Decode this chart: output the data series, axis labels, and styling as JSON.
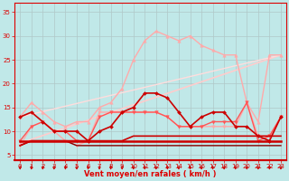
{
  "xlabel": "Vent moyen/en rafales ( km/h )",
  "bg_color": "#c0e8e8",
  "grid_color": "#b0c8c8",
  "text_color": "#dd0000",
  "xlim": [
    -0.5,
    23.5
  ],
  "ylim": [
    4,
    37
  ],
  "yticks": [
    5,
    10,
    15,
    20,
    25,
    30,
    35
  ],
  "xticks": [
    0,
    1,
    2,
    3,
    4,
    5,
    6,
    7,
    8,
    9,
    10,
    11,
    12,
    13,
    14,
    15,
    16,
    17,
    18,
    19,
    20,
    21,
    22,
    23
  ],
  "lines": [
    {
      "x": [
        0,
        1,
        2,
        3,
        4,
        5,
        6,
        7,
        8,
        9,
        10,
        11,
        12,
        13,
        14,
        15,
        16,
        17,
        18,
        19,
        20,
        21,
        22,
        23
      ],
      "y": [
        13,
        16,
        14,
        12,
        11,
        12,
        12,
        15,
        16,
        19,
        25,
        29,
        31,
        30,
        29,
        30,
        28,
        27,
        26,
        26,
        16,
        12,
        26,
        26
      ],
      "color": "#ffaaaa",
      "lw": 1.0,
      "marker": "^",
      "ms": 2.5,
      "zorder": 3
    },
    {
      "x": [
        0,
        1,
        2,
        3,
        4,
        5,
        6,
        7,
        8,
        9,
        10,
        11,
        12,
        13,
        14,
        15,
        16,
        17,
        18,
        19,
        20,
        21,
        22,
        23
      ],
      "y": [
        7,
        11,
        12,
        10,
        8,
        7,
        8,
        14,
        14,
        14,
        14,
        14,
        14,
        13,
        11,
        11,
        11,
        11,
        11,
        11,
        16,
        9,
        9,
        13
      ],
      "color": "#ffaaaa",
      "lw": 1.0,
      "marker": "v",
      "ms": 2.5,
      "zorder": 3
    },
    {
      "x": [
        0,
        1,
        2,
        3,
        4,
        5,
        6,
        7,
        8,
        9,
        10,
        11,
        12,
        13,
        14,
        15,
        16,
        17,
        18,
        19,
        20,
        21,
        22,
        23
      ],
      "y": [
        8,
        11,
        12,
        10,
        10,
        8,
        8,
        13,
        14,
        14,
        14,
        14,
        14,
        13,
        11,
        11,
        11,
        12,
        12,
        12,
        16,
        8,
        9,
        13
      ],
      "color": "#ff5555",
      "lw": 1.0,
      "marker": "v",
      "ms": 2.5,
      "zorder": 4
    },
    {
      "x": [
        0,
        1,
        2,
        3,
        4,
        5,
        6,
        7,
        8,
        9,
        10,
        11,
        12,
        13,
        14,
        15,
        16,
        17,
        18,
        19,
        20,
        21,
        22,
        23
      ],
      "y": [
        8,
        8,
        8,
        8,
        8,
        8,
        8,
        8,
        8,
        8,
        8,
        8,
        8,
        8,
        8,
        8,
        8,
        8,
        8,
        8,
        8,
        8,
        8,
        8
      ],
      "color": "#cc0000",
      "lw": 1.8,
      "marker": null,
      "ms": 0,
      "zorder": 5
    },
    {
      "x": [
        0,
        1,
        2,
        3,
        4,
        5,
        6,
        7,
        8,
        9,
        10,
        11,
        12,
        13,
        14,
        15,
        16,
        17,
        18,
        19,
        20,
        21,
        22,
        23
      ],
      "y": [
        7,
        8,
        8,
        8,
        8,
        8,
        8,
        8,
        8,
        8,
        9,
        9,
        9,
        9,
        9,
        9,
        9,
        9,
        9,
        9,
        9,
        9,
        9,
        9
      ],
      "color": "#cc0000",
      "lw": 1.2,
      "marker": null,
      "ms": 0,
      "zorder": 4
    },
    {
      "x": [
        0,
        1,
        2,
        3,
        4,
        5,
        6,
        7,
        8,
        9,
        10,
        11,
        12,
        13,
        14,
        15,
        16,
        17,
        18,
        19,
        20,
        21,
        22,
        23
      ],
      "y": [
        7,
        8,
        8,
        8,
        8,
        7,
        7,
        7,
        7,
        7,
        7,
        7,
        7,
        7,
        7,
        7,
        7,
        7,
        7,
        7,
        7,
        7,
        7,
        7
      ],
      "color": "#880000",
      "lw": 1.0,
      "marker": null,
      "ms": 0,
      "zorder": 3
    },
    {
      "x": [
        0,
        1,
        2,
        3,
        4,
        5,
        6,
        7,
        8,
        9,
        10,
        11,
        12,
        13,
        14,
        15,
        16,
        17,
        18,
        19,
        20,
        21,
        22,
        23
      ],
      "y": [
        13,
        14,
        12,
        10,
        10,
        10,
        8,
        10,
        11,
        14,
        15,
        18,
        18,
        17,
        14,
        11,
        13,
        14,
        14,
        11,
        11,
        9,
        8,
        13
      ],
      "color": "#cc0000",
      "lw": 1.2,
      "marker": "D",
      "ms": 2.0,
      "zorder": 6
    },
    {
      "x": [
        0,
        23
      ],
      "y": [
        7.5,
        26
      ],
      "color": "#ffcccc",
      "lw": 1.2,
      "marker": null,
      "ms": 0,
      "zorder": 2
    },
    {
      "x": [
        0,
        23
      ],
      "y": [
        13,
        26
      ],
      "color": "#ffdddd",
      "lw": 1.0,
      "marker": null,
      "ms": 0,
      "zorder": 2
    }
  ],
  "arrow_color": "#cc0000",
  "xlabel_fontsize": 6.0,
  "tick_fontsize": 5.0
}
